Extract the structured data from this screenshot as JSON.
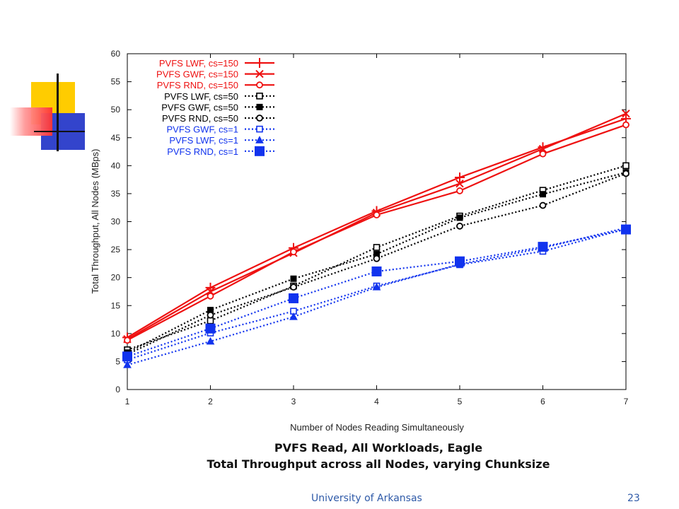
{
  "slide": {
    "caption_line1": "PVFS Read, All Workloads, Eagle",
    "caption_line2": "Total Throughput across all Nodes, varying Chunksize",
    "footer_left": "University of Arkansas",
    "page_number": "23"
  },
  "colors": {
    "red": "#ee1111",
    "black": "#000000",
    "blue": "#1133ee",
    "deco_yellow": "#ffcc00",
    "deco_red": "#ff3333",
    "deco_blue": "#3344cc"
  },
  "chart_data": {
    "type": "line",
    "title": "",
    "xlabel": "Number of Nodes Reading Simultaneously",
    "ylabel": "Total Throughput, All Nodes (MBps)",
    "x": [
      1,
      2,
      3,
      4,
      5,
      6,
      7
    ],
    "xlim": [
      1,
      7
    ],
    "ylim": [
      0,
      60
    ],
    "xticks": [
      "1",
      "2",
      "3",
      "4",
      "5",
      "6",
      "7"
    ],
    "yticks": [
      "0",
      "5",
      "10",
      "15",
      "20",
      "25",
      "30",
      "35",
      "40",
      "45",
      "50",
      "55",
      "60"
    ],
    "legend_position": "top-left",
    "series": [
      {
        "name": "PVFS LWF, cs=150",
        "color": "red",
        "style": "solid",
        "marker": "plus",
        "values": [
          9.3,
          18.2,
          25.3,
          31.9,
          37.9,
          43.3,
          48.4
        ]
      },
      {
        "name": "PVFS GWF, cs=150",
        "color": "red",
        "style": "solid",
        "marker": "cross",
        "values": [
          9.0,
          17.5,
          24.4,
          31.6,
          36.8,
          43.0,
          49.3
        ]
      },
      {
        "name": "PVFS RND, cs=150",
        "color": "red",
        "style": "solid",
        "marker": "circle",
        "values": [
          8.8,
          16.7,
          24.6,
          31.2,
          35.5,
          42.1,
          47.3
        ]
      },
      {
        "name": "PVFS LWF, cs=50",
        "color": "black",
        "style": "dotted",
        "marker": "square-open",
        "values": [
          7.1,
          12.3,
          18.5,
          25.4,
          31.0,
          35.6,
          40.0
        ]
      },
      {
        "name": "PVFS GWF, cs=50",
        "color": "black",
        "style": "dotted",
        "marker": "square-filled",
        "values": [
          6.6,
          14.2,
          19.8,
          24.2,
          30.7,
          34.9,
          38.8
        ]
      },
      {
        "name": "PVFS RND, cs=50",
        "color": "black",
        "style": "dotted",
        "marker": "circle",
        "values": [
          6.3,
          13.3,
          18.3,
          23.4,
          29.2,
          32.9,
          38.6
        ]
      },
      {
        "name": "PVFS GWF, cs=1",
        "color": "blue",
        "style": "dotted",
        "marker": "square-open",
        "values": [
          5.3,
          10.1,
          14.0,
          18.5,
          22.3,
          24.7,
          28.7
        ]
      },
      {
        "name": "PVFS LWF, cs=1",
        "color": "blue",
        "style": "dotted",
        "marker": "triangle",
        "values": [
          4.4,
          8.6,
          13.0,
          18.3,
          22.4,
          25.3,
          28.9
        ]
      },
      {
        "name": "PVFS RND, cs=1",
        "color": "blue",
        "style": "dotted",
        "marker": "square-big",
        "values": [
          5.9,
          10.9,
          16.3,
          21.1,
          22.9,
          25.5,
          28.6
        ]
      }
    ]
  }
}
